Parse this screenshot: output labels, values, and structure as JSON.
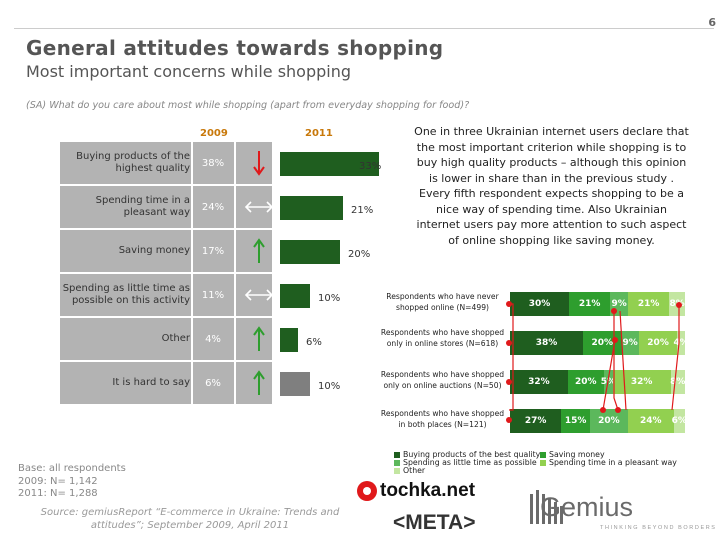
{
  "page_number": "6",
  "title": "General attitudes towards shopping",
  "subtitle": "Most important concerns while shopping",
  "question": "(SA) What do you care about most while shopping (apart from everyday shopping for food)?",
  "callout": "One in three Ukrainian internet users declare that the most important criterion while shopping is to buy high quality products – although this opinion is lower in share than in the previous study . Every fifth respondent expects shopping to be a nice way of spending time. Also Ukrainian internet users pay more attention to such aspect of online shopping like saving money.",
  "base": [
    "Base: all respondents",
    "2009: N= 1,142",
    "2011: N= 1,288"
  ],
  "source": "Source: gemiusReport “E-commerce in Ukraine: Trends and attitudes”; September 2009, April 2011",
  "logos": {
    "tochka": "tochka.net",
    "meta": "<META>",
    "gemius": "Gemius",
    "gemius_tagline": "THINKING BEYOND BORDERS"
  },
  "colors": {
    "bar_2011_dark": "#1f5e1f",
    "bar_2011_gray": "#7f7f7f",
    "row_bg": "#b3b3b3",
    "arrow_down": "#e0191b",
    "arrow_up": "#2e9e2e",
    "year_header": "#c8780a"
  },
  "chart_data": [
    {
      "type": "bar",
      "orientation": "horizontal",
      "years": [
        "2009",
        "2011"
      ],
      "categories": [
        "Buying products of the highest quality",
        "Spending time in a pleasant way",
        "Saving money",
        "Spending as little time as possible on this activity",
        "Other",
        "It is hard to say"
      ],
      "series": [
        {
          "name": "2009",
          "values": [
            38,
            24,
            17,
            11,
            4,
            6
          ],
          "labels": [
            "38%",
            "24%",
            "17%",
            "11%",
            "4%",
            "6%"
          ]
        },
        {
          "name": "2011",
          "values": [
            33,
            21,
            20,
            10,
            6,
            10
          ],
          "labels": [
            "33%",
            "21%",
            "20%",
            "10%",
            "6%",
            "10%"
          ]
        }
      ],
      "trend": [
        "down-arrow",
        "both-arrow",
        "up-arrow",
        "both-arrow",
        "up-arrow",
        "up-arrow"
      ],
      "xlim": [
        0,
        40
      ]
    },
    {
      "type": "bar",
      "orientation": "horizontal",
      "stacked": true,
      "percent": true,
      "categories": [
        "Respondents who have never shopped online (N=499)",
        "Respondents who have shopped only in online stores (N=618)",
        "Respondents who have shopped only on online auctions (N=50)",
        "Respondents who have shopped in both places (N=121)"
      ],
      "series": [
        {
          "name": "Buying products of the best quality",
          "color": "#1f5e1f",
          "values": [
            30,
            38,
            32,
            27
          ],
          "labels": [
            "30%",
            "38%",
            "32%",
            "27%"
          ]
        },
        {
          "name": "Saving money",
          "color": "#2e9e2e",
          "values": [
            21,
            20,
            20,
            15
          ],
          "labels": [
            "21%",
            "20%",
            "20%",
            "15%"
          ]
        },
        {
          "name": "Spending as little time as possible",
          "color": "#5cb85c",
          "values": [
            9,
            9,
            5,
            20
          ],
          "labels": [
            "9%",
            "9%",
            "5%",
            "20%"
          ]
        },
        {
          "name": "Spending time in a pleasant way",
          "color": "#92d050",
          "values": [
            21,
            20,
            32,
            24
          ],
          "labels": [
            "21%",
            "20%",
            "32%",
            "24%"
          ]
        },
        {
          "name": "Other",
          "color": "#c3e6a1",
          "values": [
            8,
            4,
            8,
            6
          ],
          "labels": [
            "8%",
            "4%",
            "8%",
            "6%"
          ]
        }
      ]
    }
  ]
}
